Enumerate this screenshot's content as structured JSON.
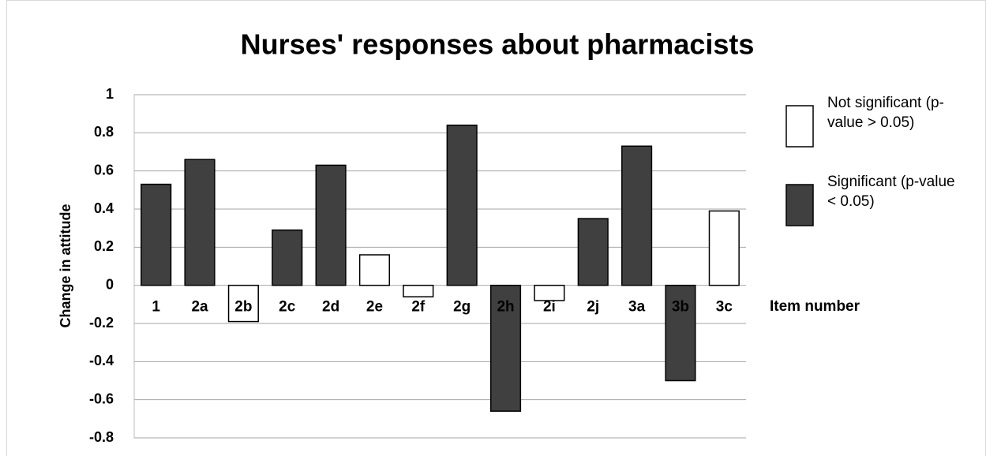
{
  "chart_data": {
    "type": "bar",
    "title": "Nurses' responses about pharmacists",
    "y_label": "Change in attitude",
    "x_label": "Item number",
    "categories": [
      "1",
      "2a",
      "2b",
      "2c",
      "2d",
      "2e",
      "2f",
      "2g",
      "2h",
      "2i",
      "2j",
      "3a",
      "3b",
      "3c"
    ],
    "series": [
      {
        "name": "Not significant (p-value > 0.05)",
        "color": "#ffffff",
        "values": [
          null,
          null,
          -0.19,
          null,
          null,
          0.16,
          -0.06,
          null,
          null,
          -0.08,
          null,
          null,
          null,
          0.39
        ]
      },
      {
        "name": "Significant (p-value < 0.05)",
        "color": "#404040",
        "values": [
          0.53,
          0.66,
          null,
          0.29,
          0.63,
          null,
          null,
          0.84,
          -0.66,
          null,
          0.35,
          0.73,
          -0.5,
          null
        ]
      }
    ],
    "ylim": [
      -0.8,
      1
    ],
    "yticks": [
      -0.8,
      -0.6,
      -0.4,
      -0.2,
      0,
      0.2,
      0.4,
      0.6,
      0.8,
      1
    ],
    "grid": true,
    "legend": "right"
  }
}
